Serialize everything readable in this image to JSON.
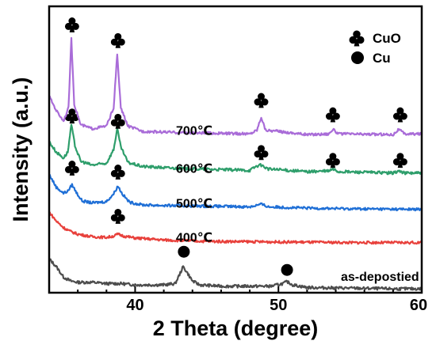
{
  "chart_data": {
    "type": "line",
    "title": "",
    "xlabel": "2 Theta (degree)",
    "ylabel": "Intensity (a.u.)",
    "xlim": [
      34,
      60
    ],
    "x_ticks": [
      40,
      50,
      60
    ],
    "x_tick_labels": [
      "40",
      "50",
      "60"
    ],
    "y_ticks_shown": false,
    "grid": false,
    "legend_position": "top-right",
    "legend": [
      {
        "symbol": "club",
        "label": "CuO"
      },
      {
        "symbol": "circle",
        "label": "Cu"
      }
    ],
    "series": [
      {
        "name": "as-depostied",
        "color": "#4d4d4d",
        "baseline": 0.5,
        "noise": 0.22,
        "points": [
          [
            34.0,
            2.6
          ],
          [
            34.5,
            2.0
          ],
          [
            35.0,
            1.2
          ],
          [
            35.5,
            0.9
          ],
          [
            36.0,
            0.8
          ],
          [
            37.0,
            0.8
          ],
          [
            38.0,
            0.7
          ],
          [
            39.0,
            0.7
          ],
          [
            40.0,
            0.6
          ],
          [
            41.0,
            0.6
          ],
          [
            42.0,
            0.6
          ],
          [
            42.8,
            0.7
          ],
          [
            43.1,
            1.4
          ],
          [
            43.35,
            2.0
          ],
          [
            43.6,
            1.6
          ],
          [
            44.0,
            0.9
          ],
          [
            44.5,
            0.6
          ],
          [
            46.0,
            0.5
          ],
          [
            48.0,
            0.5
          ],
          [
            49.5,
            0.5
          ],
          [
            50.3,
            0.7
          ],
          [
            50.6,
            0.85
          ],
          [
            51.0,
            0.6
          ],
          [
            52.0,
            0.4
          ],
          [
            55.0,
            0.35
          ],
          [
            58.0,
            0.3
          ],
          [
            60.0,
            0.3
          ]
        ],
        "markers": [
          {
            "symbol": "circle",
            "x": 43.4,
            "y": 3.15
          },
          {
            "symbol": "circle",
            "x": 50.6,
            "y": 1.75
          }
        ]
      },
      {
        "name": "400℃",
        "color": "#e8413c",
        "baseline": 3.8,
        "noise": 0.2,
        "points": [
          [
            34.0,
            6.2
          ],
          [
            34.5,
            5.5
          ],
          [
            35.0,
            5.0
          ],
          [
            35.5,
            4.7
          ],
          [
            36.0,
            4.5
          ],
          [
            37.0,
            4.3
          ],
          [
            38.0,
            4.25
          ],
          [
            38.5,
            4.35
          ],
          [
            38.8,
            4.5
          ],
          [
            39.2,
            4.35
          ],
          [
            40.0,
            4.2
          ],
          [
            42.0,
            4.05
          ],
          [
            45.0,
            3.95
          ],
          [
            50.0,
            3.9
          ],
          [
            55.0,
            3.85
          ],
          [
            60.0,
            3.85
          ]
        ],
        "markers": [
          {
            "symbol": "club",
            "x": 38.8,
            "y": 5.9
          }
        ]
      },
      {
        "name": "500℃",
        "color": "#1f6fd6",
        "baseline": 6.4,
        "noise": 0.2,
        "points": [
          [
            34.0,
            9.1
          ],
          [
            34.5,
            8.1
          ],
          [
            35.0,
            7.65
          ],
          [
            35.3,
            7.8
          ],
          [
            35.6,
            8.3
          ],
          [
            35.9,
            7.7
          ],
          [
            36.3,
            7.05
          ],
          [
            37.0,
            6.9
          ],
          [
            38.0,
            7.0
          ],
          [
            38.5,
            7.6
          ],
          [
            38.8,
            8.2
          ],
          [
            39.1,
            7.6
          ],
          [
            39.6,
            6.95
          ],
          [
            40.5,
            6.75
          ],
          [
            42.0,
            6.7
          ],
          [
            45.0,
            6.65
          ],
          [
            48.0,
            6.6
          ],
          [
            48.8,
            6.8
          ],
          [
            49.3,
            6.6
          ],
          [
            52.0,
            6.5
          ],
          [
            55.0,
            6.45
          ],
          [
            60.0,
            6.4
          ]
        ],
        "markers": [
          {
            "symbol": "club",
            "x": 35.6,
            "y": 9.6
          },
          {
            "symbol": "club",
            "x": 38.8,
            "y": 9.3
          }
        ]
      },
      {
        "name": "600℃",
        "color": "#2e9e6b",
        "baseline": 9.1,
        "noise": 0.22,
        "points": [
          [
            34.0,
            11.6
          ],
          [
            34.5,
            10.8
          ],
          [
            35.0,
            10.35
          ],
          [
            35.3,
            10.8
          ],
          [
            35.55,
            12.9
          ],
          [
            35.8,
            11.3
          ],
          [
            36.2,
            10.1
          ],
          [
            37.0,
            9.8
          ],
          [
            38.0,
            9.95
          ],
          [
            38.5,
            11.0
          ],
          [
            38.75,
            12.6
          ],
          [
            39.0,
            11.2
          ],
          [
            39.5,
            10.0
          ],
          [
            40.5,
            9.7
          ],
          [
            43.0,
            9.55
          ],
          [
            48.0,
            9.4
          ],
          [
            48.5,
            9.75
          ],
          [
            48.8,
            9.8
          ],
          [
            49.3,
            9.5
          ],
          [
            52.0,
            9.3
          ],
          [
            53.5,
            9.35
          ],
          [
            53.8,
            9.5
          ],
          [
            54.2,
            9.3
          ],
          [
            58.0,
            9.2
          ],
          [
            58.4,
            9.35
          ],
          [
            58.8,
            9.2
          ],
          [
            60.0,
            9.2
          ]
        ],
        "markers": [
          {
            "symbol": "club",
            "x": 35.6,
            "y": 13.6
          },
          {
            "symbol": "club",
            "x": 38.8,
            "y": 13.2
          },
          {
            "symbol": "club",
            "x": 48.8,
            "y": 10.8
          },
          {
            "symbol": "club",
            "x": 53.8,
            "y": 10.2
          },
          {
            "symbol": "club",
            "x": 58.5,
            "y": 10.2
          }
        ]
      },
      {
        "name": "700℃",
        "color": "#a96cd8",
        "baseline": 12.0,
        "noise": 0.2,
        "points": [
          [
            34.0,
            15.1
          ],
          [
            34.5,
            14.0
          ],
          [
            35.0,
            13.2
          ],
          [
            35.35,
            14.2
          ],
          [
            35.55,
            19.5
          ],
          [
            35.75,
            14.5
          ],
          [
            36.2,
            12.9
          ],
          [
            37.0,
            12.6
          ],
          [
            38.0,
            12.8
          ],
          [
            38.5,
            14.2
          ],
          [
            38.75,
            18.3
          ],
          [
            39.0,
            14.2
          ],
          [
            39.5,
            12.8
          ],
          [
            40.5,
            12.4
          ],
          [
            43.0,
            12.3
          ],
          [
            48.0,
            12.2
          ],
          [
            48.5,
            12.5
          ],
          [
            48.8,
            13.5
          ],
          [
            49.1,
            12.5
          ],
          [
            52.0,
            12.15
          ],
          [
            53.5,
            12.2
          ],
          [
            53.8,
            12.55
          ],
          [
            54.2,
            12.2
          ],
          [
            58.0,
            12.15
          ],
          [
            58.4,
            12.55
          ],
          [
            58.8,
            12.2
          ],
          [
            60.0,
            12.2
          ]
        ],
        "markers": [
          {
            "symbol": "club",
            "x": 35.6,
            "y": 20.6
          },
          {
            "symbol": "club",
            "x": 38.8,
            "y": 19.4
          },
          {
            "symbol": "club",
            "x": 48.8,
            "y": 14.8
          },
          {
            "symbol": "club",
            "x": 53.8,
            "y": 13.7
          },
          {
            "symbol": "club",
            "x": 58.5,
            "y": 13.7
          }
        ]
      }
    ]
  }
}
